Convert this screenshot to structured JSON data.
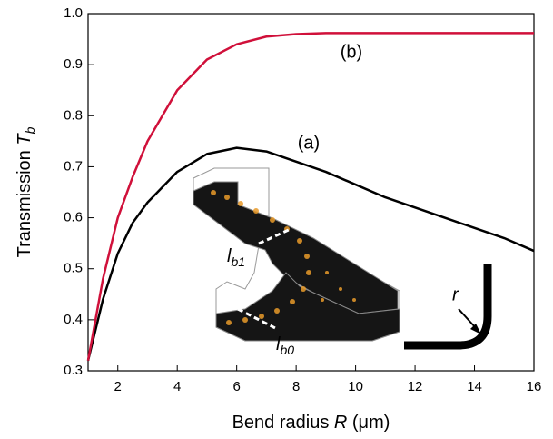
{
  "chart_data": {
    "type": "line",
    "xlabel": {
      "text": "Bend radius ",
      "var": "R",
      "unit": " (μm)"
    },
    "ylabel": {
      "text": "Transmission ",
      "var": "T",
      "sub": "b"
    },
    "x": [
      1,
      1.5,
      2,
      2.5,
      3,
      4,
      5,
      6,
      7,
      8,
      9,
      10,
      11,
      12,
      13,
      14,
      15,
      16
    ],
    "series": [
      {
        "name": "(a)",
        "color": "#000000",
        "values": [
          0.32,
          0.44,
          0.53,
          0.59,
          0.63,
          0.69,
          0.725,
          0.737,
          0.73,
          0.71,
          0.69,
          0.665,
          0.64,
          0.62,
          0.6,
          0.58,
          0.56,
          0.535
        ]
      },
      {
        "name": "(b)",
        "color": "#d0103a",
        "values": [
          0.32,
          0.48,
          0.6,
          0.68,
          0.75,
          0.85,
          0.91,
          0.94,
          0.955,
          0.96,
          0.962,
          0.962,
          0.962,
          0.962,
          0.962,
          0.962,
          0.962,
          0.962
        ]
      }
    ],
    "xlim": [
      1,
      16
    ],
    "xticks": [
      2,
      4,
      6,
      8,
      10,
      12,
      14,
      16
    ],
    "ylim": [
      0.3,
      1.0
    ],
    "yticks": [
      0.3,
      0.4,
      0.5,
      0.6,
      0.7,
      0.8,
      0.9,
      {
        "value": 1.0,
        "label": "1.0"
      }
    ],
    "annotations": {
      "r": "r",
      "lb1": {
        "var": "l",
        "sub": "b1"
      },
      "lb0": {
        "var": "l",
        "sub": "b0"
      }
    }
  }
}
